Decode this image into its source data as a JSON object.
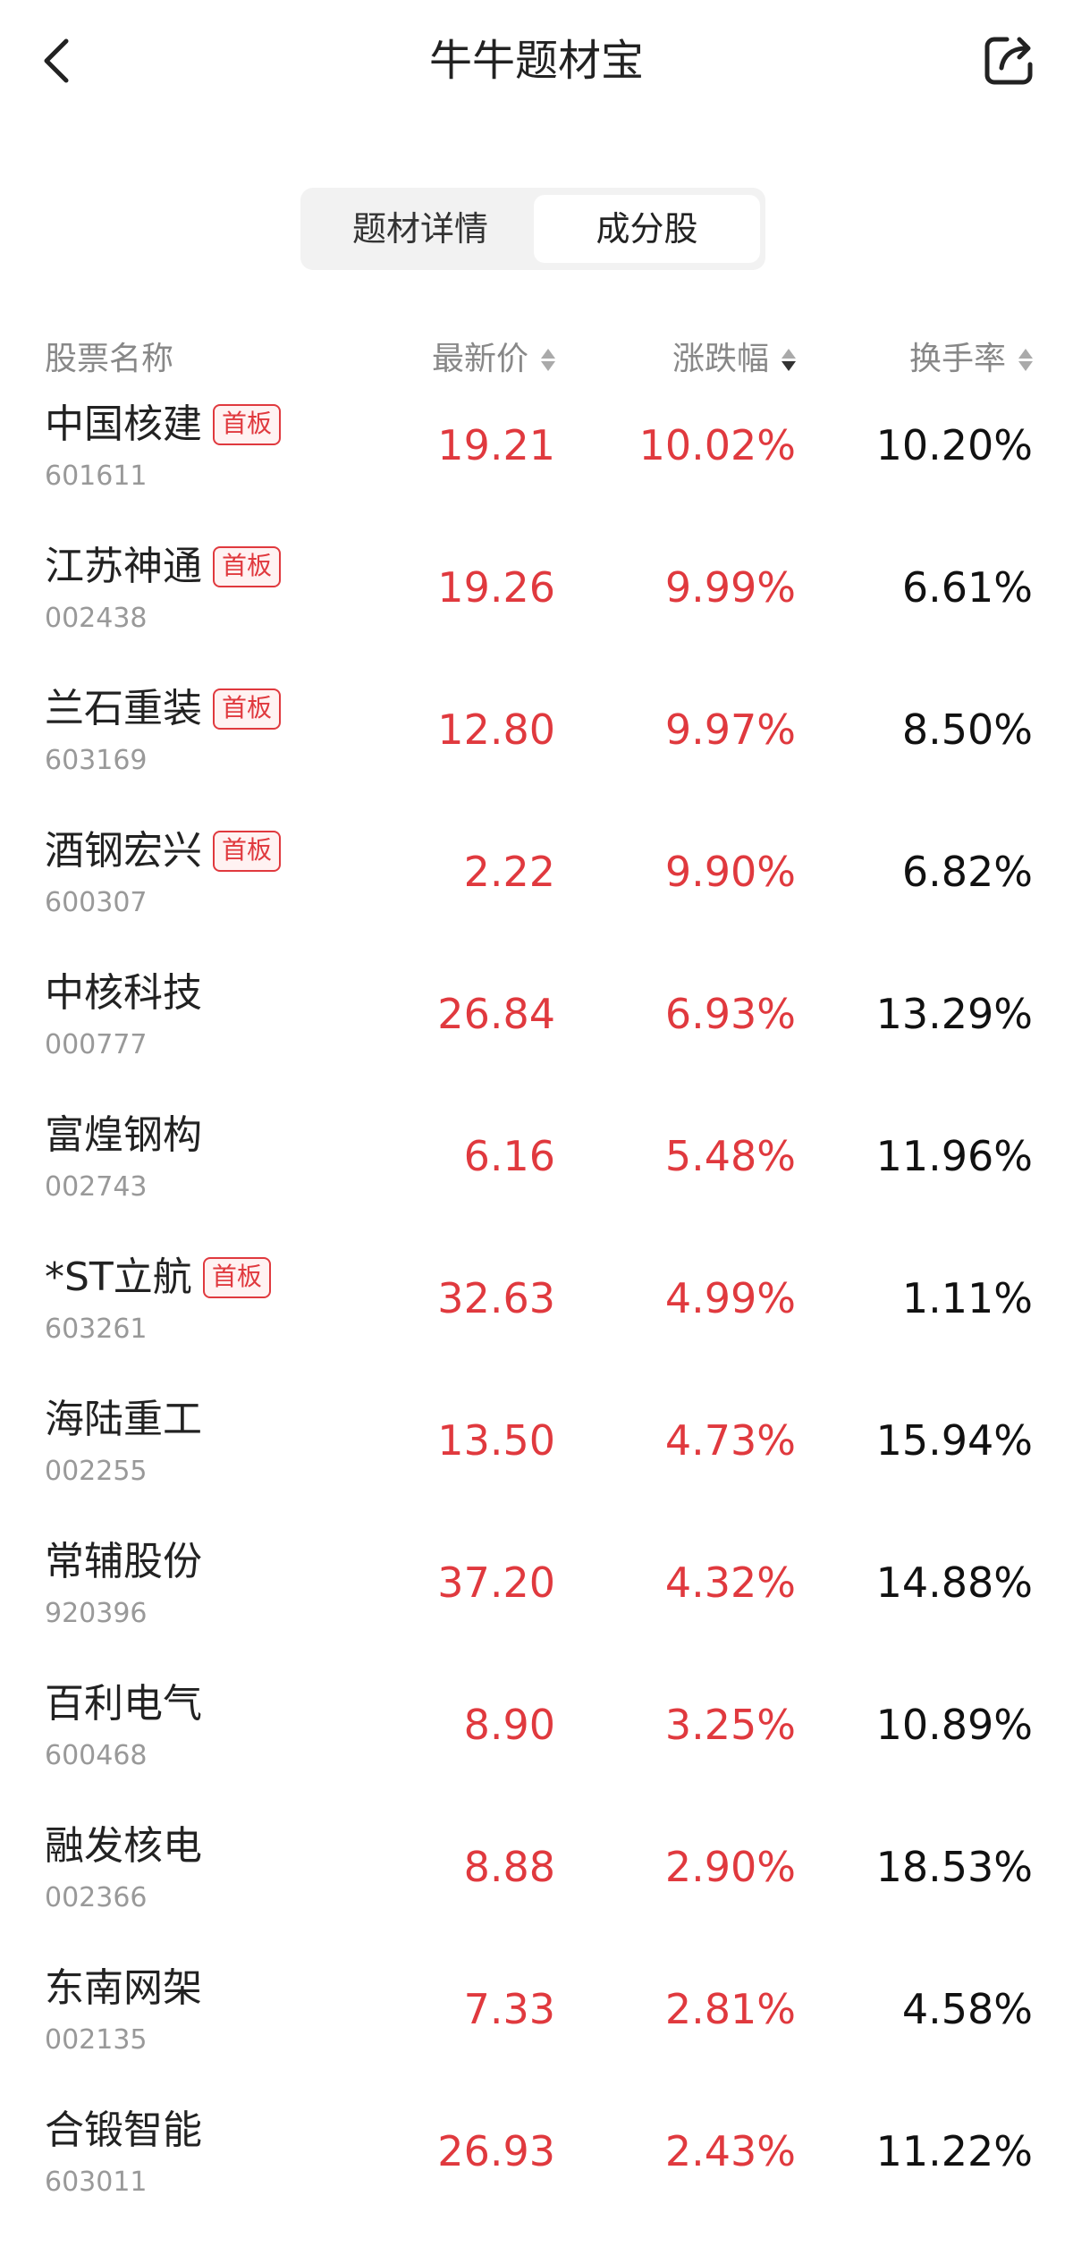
{
  "header": {
    "title": "牛牛题材宝"
  },
  "tabs": [
    {
      "label": "题材详情",
      "active": false
    },
    {
      "label": "成分股",
      "active": true
    }
  ],
  "columns": {
    "name": "股票名称",
    "price": "最新价",
    "change": "涨跌幅",
    "turnover": "换手率",
    "sorted_by": "涨跌幅",
    "sort_direction": "descending"
  },
  "colors": {
    "up": "#e0393e",
    "text": "#222222",
    "muted": "#999999"
  },
  "stocks": [
    {
      "name": "中国核建",
      "code": "601611",
      "badge": "首板",
      "price": "19.21",
      "change": "10.02%",
      "turnover": "10.20%"
    },
    {
      "name": "江苏神通",
      "code": "002438",
      "badge": "首板",
      "price": "19.26",
      "change": "9.99%",
      "turnover": "6.61%"
    },
    {
      "name": "兰石重装",
      "code": "603169",
      "badge": "首板",
      "price": "12.80",
      "change": "9.97%",
      "turnover": "8.50%"
    },
    {
      "name": "酒钢宏兴",
      "code": "600307",
      "badge": "首板",
      "price": "2.22",
      "change": "9.90%",
      "turnover": "6.82%"
    },
    {
      "name": "中核科技",
      "code": "000777",
      "badge": null,
      "price": "26.84",
      "change": "6.93%",
      "turnover": "13.29%"
    },
    {
      "name": "富煌钢构",
      "code": "002743",
      "badge": null,
      "price": "6.16",
      "change": "5.48%",
      "turnover": "11.96%"
    },
    {
      "name": "*ST立航",
      "code": "603261",
      "badge": "首板",
      "price": "32.63",
      "change": "4.99%",
      "turnover": "1.11%"
    },
    {
      "name": "海陆重工",
      "code": "002255",
      "badge": null,
      "price": "13.50",
      "change": "4.73%",
      "turnover": "15.94%"
    },
    {
      "name": "常辅股份",
      "code": "920396",
      "badge": null,
      "price": "37.20",
      "change": "4.32%",
      "turnover": "14.88%"
    },
    {
      "name": "百利电气",
      "code": "600468",
      "badge": null,
      "price": "8.90",
      "change": "3.25%",
      "turnover": "10.89%"
    },
    {
      "name": "融发核电",
      "code": "002366",
      "badge": null,
      "price": "8.88",
      "change": "2.90%",
      "turnover": "18.53%"
    },
    {
      "name": "东南网架",
      "code": "002135",
      "badge": null,
      "price": "7.33",
      "change": "2.81%",
      "turnover": "4.58%"
    },
    {
      "name": "合锻智能",
      "code": "603011",
      "badge": null,
      "price": "26.93",
      "change": "2.43%",
      "turnover": "11.22%"
    }
  ]
}
